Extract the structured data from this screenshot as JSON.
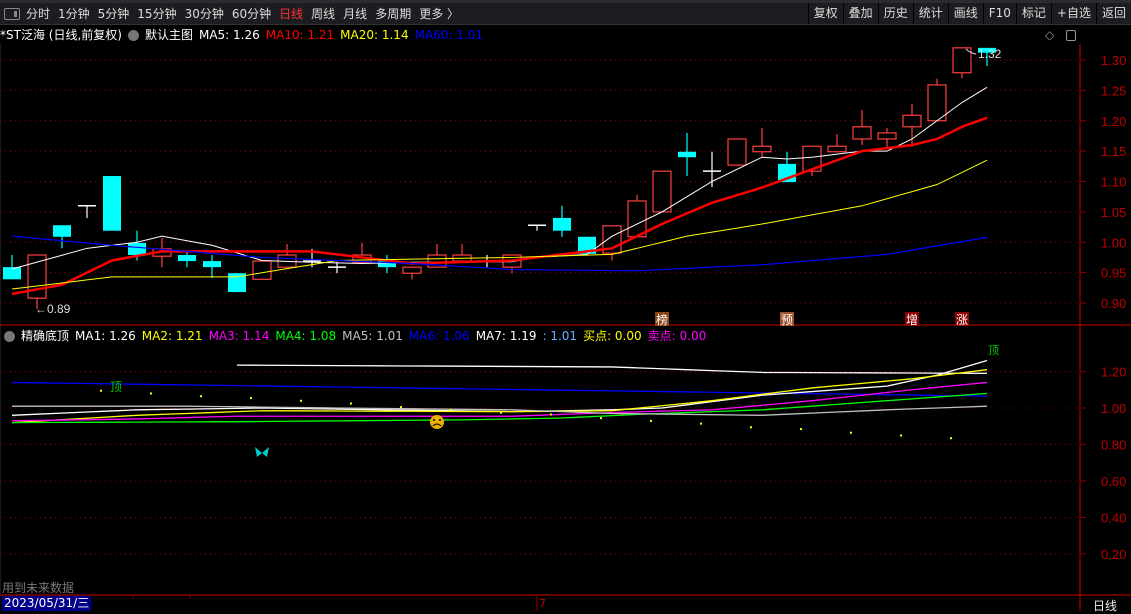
{
  "toolbar": {
    "periods": [
      "分时",
      "1分钟",
      "5分钟",
      "15分钟",
      "30分钟",
      "60分钟",
      "日线",
      "周线",
      "月线",
      "多周期",
      "更多 〉"
    ],
    "active_period": "日线",
    "buttons": [
      "复权",
      "叠加",
      "历史",
      "统计",
      "画线",
      "F10",
      "标记",
      "+自选",
      "返回"
    ]
  },
  "main_chart": {
    "title": "*ST泛海 (日线,前复权)",
    "template": "默认主图",
    "legend": [
      {
        "label": "MA5: 1.26",
        "color": "#ffffff"
      },
      {
        "label": "MA10: 1.21",
        "color": "#ff0000"
      },
      {
        "label": "MA20: 1.14",
        "color": "#ffff00"
      },
      {
        "label": "MA60: 1.01",
        "color": "#0000ff"
      }
    ],
    "y_ticks": [
      "1.30",
      "1.25",
      "1.20",
      "1.15",
      "1.10",
      "1.05",
      "1.00",
      "0.95",
      "0.90"
    ],
    "low_label": "←0.89",
    "high_label": "1.32",
    "colors": {
      "up": "#ff4040",
      "down": "#00ffff",
      "doji": "#ffffff",
      "grid": "#8b0000",
      "axis": "#8b0000"
    },
    "candles": [
      [
        0.959,
        0.939,
        0.979,
        0.939
      ],
      [
        0.908,
        0.979,
        0.979,
        0.89
      ],
      [
        1.028,
        1.009,
        1.028,
        0.99
      ],
      [
        1.06,
        1.06,
        1.06,
        1.04
      ],
      [
        1.109,
        1.019,
        1.109,
        1.019
      ],
      [
        0.999,
        0.979,
        1.019,
        0.97
      ],
      [
        0.977,
        0.989,
        1.007,
        0.959
      ],
      [
        0.979,
        0.969,
        0.986,
        0.959
      ],
      [
        0.969,
        0.959,
        0.979,
        0.941
      ],
      [
        0.949,
        0.918,
        0.949,
        0.918
      ],
      [
        0.939,
        0.969,
        0.969,
        0.939
      ],
      [
        0.959,
        0.979,
        0.997,
        0.959
      ],
      [
        0.969,
        0.969,
        0.989,
        0.959
      ],
      [
        0.959,
        0.959,
        0.968,
        0.949
      ],
      [
        0.967,
        0.979,
        0.999,
        0.967
      ],
      [
        0.969,
        0.959,
        0.979,
        0.949
      ],
      [
        0.949,
        0.959,
        0.959,
        0.939
      ],
      [
        0.959,
        0.979,
        0.997,
        0.959
      ],
      [
        0.969,
        0.979,
        0.997,
        0.969
      ],
      [
        0.969,
        0.969,
        0.979,
        0.959
      ],
      [
        0.959,
        0.979,
        0.979,
        0.949
      ],
      [
        1.028,
        1.028,
        1.028,
        1.019
      ],
      [
        1.04,
        1.019,
        1.06,
        1.009
      ],
      [
        1.009,
        0.981,
        1.009,
        0.981
      ],
      [
        0.982,
        1.027,
        1.027,
        0.97
      ],
      [
        1.009,
        1.068,
        1.078,
        1.009
      ],
      [
        1.05,
        1.117,
        1.117,
        1.05
      ],
      [
        1.149,
        1.14,
        1.18,
        1.109
      ],
      [
        1.117,
        1.117,
        1.149,
        1.091
      ],
      [
        1.127,
        1.17,
        1.17,
        1.127
      ],
      [
        1.149,
        1.158,
        1.188,
        1.14
      ],
      [
        1.129,
        1.099,
        1.149,
        1.099
      ],
      [
        1.117,
        1.158,
        1.158,
        1.109
      ],
      [
        1.149,
        1.158,
        1.178,
        1.149
      ],
      [
        1.17,
        1.19,
        1.218,
        1.16
      ],
      [
        1.17,
        1.18,
        1.188,
        1.157
      ],
      [
        1.19,
        1.209,
        1.228,
        1.157
      ],
      [
        1.2,
        1.259,
        1.269,
        1.2
      ],
      [
        1.279,
        1.32,
        1.32,
        1.27
      ],
      [
        1.32,
        1.312,
        1.32,
        1.29
      ]
    ],
    "ma_lines": [
      {
        "name": "MA5",
        "color": "#ffffff",
        "width": 1,
        "points": [
          [
            0,
            0.956
          ],
          [
            3,
            0.99
          ],
          [
            5,
            1.0
          ],
          [
            6,
            1.01
          ],
          [
            8,
            0.995
          ],
          [
            10,
            0.97
          ],
          [
            12,
            0.967
          ],
          [
            14,
            0.965
          ],
          [
            16,
            0.967
          ],
          [
            20,
            0.968
          ],
          [
            21,
            0.975
          ],
          [
            23,
            0.98
          ],
          [
            24,
            1.01
          ],
          [
            25,
            1.03
          ],
          [
            26,
            1.05
          ],
          [
            28,
            1.1
          ],
          [
            29,
            1.12
          ],
          [
            30,
            1.14
          ],
          [
            31,
            1.137
          ],
          [
            32,
            1.14
          ],
          [
            34,
            1.15
          ],
          [
            35,
            1.15
          ],
          [
            36,
            1.17
          ],
          [
            37,
            1.2
          ],
          [
            38,
            1.23
          ],
          [
            39,
            1.255
          ]
        ]
      },
      {
        "name": "MA10",
        "color": "#ff0000",
        "width": 2.5,
        "points": [
          [
            0,
            0.915
          ],
          [
            2,
            0.93
          ],
          [
            4,
            0.97
          ],
          [
            6,
            0.985
          ],
          [
            10,
            0.985
          ],
          [
            12,
            0.985
          ],
          [
            14,
            0.975
          ],
          [
            16,
            0.965
          ],
          [
            20,
            0.97
          ],
          [
            24,
            0.99
          ],
          [
            26,
            1.03
          ],
          [
            28,
            1.065
          ],
          [
            30,
            1.09
          ],
          [
            32,
            1.12
          ],
          [
            34,
            1.15
          ],
          [
            36,
            1.16
          ],
          [
            37,
            1.17
          ],
          [
            38,
            1.19
          ],
          [
            39,
            1.205
          ]
        ]
      },
      {
        "name": "MA20",
        "color": "#ffff00",
        "width": 1,
        "points": [
          [
            0,
            0.923
          ],
          [
            4,
            0.943
          ],
          [
            9,
            0.943
          ],
          [
            13,
            0.97
          ],
          [
            20,
            0.975
          ],
          [
            24,
            0.98
          ],
          [
            27,
            1.01
          ],
          [
            30,
            1.03
          ],
          [
            34,
            1.06
          ],
          [
            37,
            1.095
          ],
          [
            39,
            1.135
          ]
        ]
      },
      {
        "name": "MA60",
        "color": "#0000ff",
        "width": 1.2,
        "points": [
          [
            0,
            1.01
          ],
          [
            4,
            0.995
          ],
          [
            10,
            0.975
          ],
          [
            16,
            0.965
          ],
          [
            20,
            0.955
          ],
          [
            25,
            0.953
          ],
          [
            30,
            0.963
          ],
          [
            35,
            0.98
          ],
          [
            39,
            1.008
          ]
        ]
      }
    ],
    "event_markers": [
      {
        "index": 26,
        "label": "榜",
        "color": "#8b4513"
      },
      {
        "index": 31,
        "label": "预",
        "color": "#a0522d"
      },
      {
        "index": 36,
        "label": "增",
        "color": "#8b0000"
      },
      {
        "index": 38,
        "label": "涨",
        "color": "#8b0000"
      }
    ]
  },
  "indicator": {
    "name": "精确底顶",
    "legend": [
      {
        "label": "MA1: 1.26",
        "color": "#ffffff"
      },
      {
        "label": "MA2: 1.21",
        "color": "#ffff00"
      },
      {
        "label": "MA3: 1.14",
        "color": "#ff00ff"
      },
      {
        "label": "MA4: 1.08",
        "color": "#00ff00"
      },
      {
        "label": "MA5: 1.01",
        "color": "#c0c0c0"
      },
      {
        "label": "MA6: 1.06",
        "color": "#0000ff"
      },
      {
        "label": "MA7: 1.19",
        "color": "#ffffff"
      },
      {
        "label": ": 1.01",
        "color": "#66aaff"
      },
      {
        "label": "买点: 0.00",
        "color": "#ffff00"
      },
      {
        "label": "卖点: 0.00",
        "color": "#ff00ff"
      }
    ],
    "y_ticks": [
      "1.20",
      "1.00",
      "0.80",
      "0.60",
      "0.40",
      "0.20"
    ],
    "lines": [
      {
        "name": "MA7",
        "color": "#ffffff",
        "points": [
          [
            9,
            1.235
          ],
          [
            24,
            1.225
          ],
          [
            30,
            1.195
          ],
          [
            39,
            1.19
          ]
        ]
      },
      {
        "name": "MA6",
        "color": "#0000ff",
        "points": [
          [
            0,
            1.14
          ],
          [
            39,
            1.065
          ]
        ]
      },
      {
        "name": "MA1",
        "color": "#ffffff",
        "points": [
          [
            0,
            0.96
          ],
          [
            5,
            0.99
          ],
          [
            10,
            1.0
          ],
          [
            20,
            0.98
          ],
          [
            24,
            0.99
          ],
          [
            26,
            1.0
          ],
          [
            30,
            1.07
          ],
          [
            35,
            1.12
          ],
          [
            37,
            1.18
          ],
          [
            39,
            1.26
          ]
        ]
      },
      {
        "name": "MA2",
        "color": "#ffff00",
        "points": [
          [
            0,
            0.92
          ],
          [
            5,
            0.96
          ],
          [
            10,
            0.985
          ],
          [
            20,
            0.98
          ],
          [
            24,
            0.985
          ],
          [
            28,
            1.04
          ],
          [
            32,
            1.11
          ],
          [
            36,
            1.16
          ],
          [
            39,
            1.21
          ]
        ]
      },
      {
        "name": "MA3",
        "color": "#ff00ff",
        "points": [
          [
            0,
            0.93
          ],
          [
            5,
            0.94
          ],
          [
            9,
            0.955
          ],
          [
            20,
            0.955
          ],
          [
            24,
            0.975
          ],
          [
            28,
            0.99
          ],
          [
            32,
            1.04
          ],
          [
            36,
            1.1
          ],
          [
            39,
            1.14
          ]
        ]
      },
      {
        "name": "MA4",
        "color": "#00ff00",
        "points": [
          [
            0,
            0.92
          ],
          [
            9,
            0.925
          ],
          [
            18,
            0.935
          ],
          [
            22,
            0.945
          ],
          [
            25,
            0.965
          ],
          [
            30,
            0.99
          ],
          [
            35,
            1.04
          ],
          [
            39,
            1.08
          ]
        ]
      },
      {
        "name": "MA5",
        "color": "#c0c0c0",
        "points": [
          [
            0,
            1.01
          ],
          [
            7,
            1.01
          ],
          [
            13,
            1.0
          ],
          [
            20,
            0.99
          ],
          [
            24,
            0.97
          ],
          [
            30,
            0.96
          ],
          [
            35,
            0.99
          ],
          [
            39,
            1.01
          ]
        ]
      }
    ],
    "signal_dots": [
      [
        4,
        1.1
      ],
      [
        6,
        1.085
      ],
      [
        8,
        1.07
      ],
      [
        10,
        1.06
      ],
      [
        12,
        1.045
      ],
      [
        14,
        1.03
      ],
      [
        16,
        1.01
      ],
      [
        18,
        0.995
      ],
      [
        20,
        0.98
      ],
      [
        22,
        0.97
      ],
      [
        24,
        0.95
      ],
      [
        26,
        0.935
      ],
      [
        28,
        0.92
      ],
      [
        30,
        0.9
      ],
      [
        32,
        0.89
      ],
      [
        34,
        0.87
      ],
      [
        36,
        0.855
      ],
      [
        38,
        0.84
      ],
      [
        40,
        0.82
      ]
    ],
    "top_label": "顶",
    "top_label_end": "顶",
    "sad_face": "☹",
    "butterfly": "🦋"
  },
  "footer": {
    "future_data_note": "用到未来数据",
    "date": "2023/05/31/三",
    "month_tick": "7",
    "period": "日线"
  }
}
